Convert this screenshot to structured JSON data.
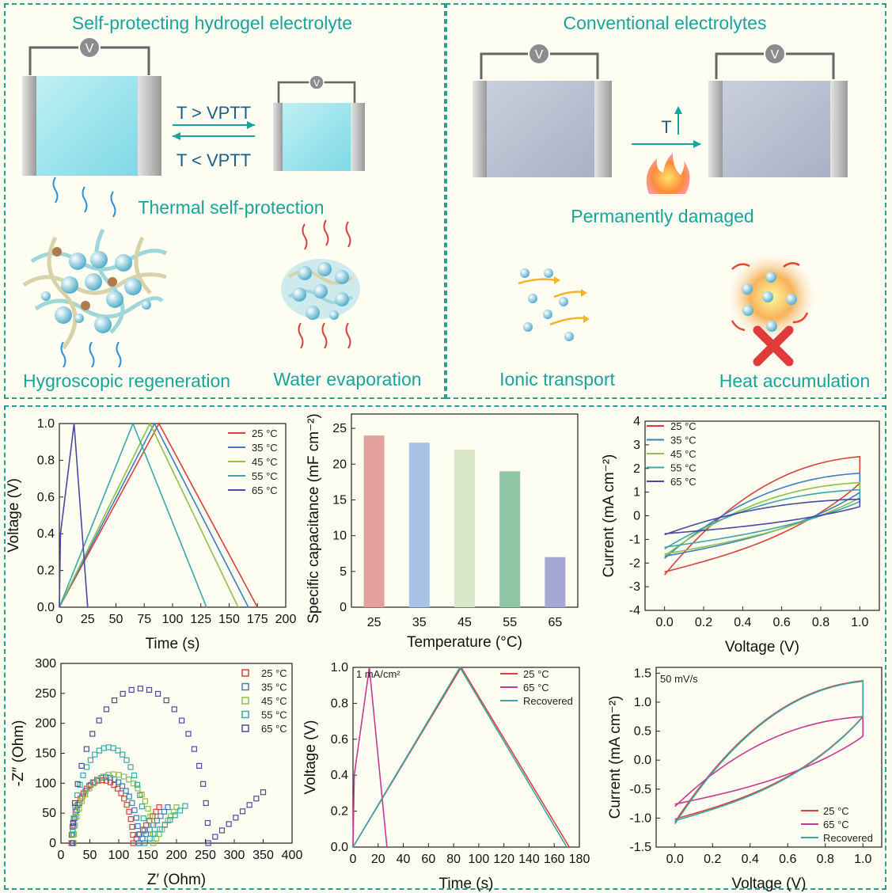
{
  "top": {
    "left_title": "Self-protecting hydrogel electrolyte",
    "right_title": "Conventional electrolytes",
    "voltmeter": "V",
    "arrow_up": "T > VPTT",
    "arrow_down": "T < VPTT",
    "thermal": "Thermal self-protection",
    "hygroscopic": "Hygroscopic regeneration",
    "water": "Water evaporation",
    "t_label": "T",
    "damaged": "Permanently damaged",
    "ionic": "Ionic transport",
    "heat": "Heat accumulation"
  },
  "colors": {
    "accent": "#19a39a",
    "c25": "#d9403a",
    "c35": "#3c7fc0",
    "c45": "#8cc04a",
    "c55": "#3aa7a8",
    "c65": "#4a4aa0",
    "magenta": "#c8398e"
  },
  "chart_data": [
    {
      "type": "line",
      "xlabel": "Time (s)",
      "ylabel": "Voltage (V)",
      "xlim": [
        0,
        200
      ],
      "ylim": [
        0,
        1.0
      ],
      "xticks": [
        "0",
        "25",
        "50",
        "75",
        "100",
        "125",
        "150",
        "175",
        "200"
      ],
      "yticks": [
        "0.0",
        "0.2",
        "0.4",
        "0.6",
        "0.8",
        "1.0"
      ],
      "series": [
        {
          "name": "25 °C",
          "x": [
            0,
            88,
            175
          ],
          "y": [
            0,
            1.0,
            0
          ]
        },
        {
          "name": "35 °C",
          "x": [
            0,
            84,
            167
          ],
          "y": [
            0,
            1.0,
            0
          ]
        },
        {
          "name": "45 °C",
          "x": [
            0,
            80,
            158
          ],
          "y": [
            0,
            1.0,
            0
          ]
        },
        {
          "name": "55 °C",
          "x": [
            0,
            65,
            130
          ],
          "y": [
            0,
            1.0,
            0
          ]
        },
        {
          "name": "65 °C",
          "x": [
            0,
            1,
            13,
            25
          ],
          "y": [
            0,
            0.4,
            1.0,
            0
          ]
        }
      ]
    },
    {
      "type": "bar",
      "xlabel": "Temperature (°C)",
      "ylabel": "Specific capacitance  (mF cm⁻²)",
      "categories": [
        "25",
        "35",
        "45",
        "55",
        "65"
      ],
      "values": [
        24,
        23,
        22,
        19,
        7
      ],
      "ylim": [
        0,
        27
      ],
      "yticks": [
        "0",
        "5",
        "10",
        "15",
        "20",
        "25"
      ],
      "bar_colors": [
        "#e3a19d",
        "#a6c2e6",
        "#d9e6c8",
        "#8fc5a4",
        "#a4a7d4"
      ]
    },
    {
      "type": "line",
      "xlabel": "Voltage (V)",
      "ylabel": "Current (mA cm⁻²)",
      "xlim": [
        -0.1,
        1.1
      ],
      "ylim": [
        -4,
        4
      ],
      "xticks": [
        "0.0",
        "0.2",
        "0.4",
        "0.6",
        "0.8",
        "1.0"
      ],
      "yticks": [
        "-4",
        "-3",
        "-2",
        "-1",
        "0",
        "1",
        "2",
        "3",
        "4"
      ],
      "series": [
        {
          "name": "25 °C",
          "top": 2.5,
          "bottom": -2.5,
          "start": -2.5
        },
        {
          "name": "35 °C",
          "top": 1.8,
          "bottom": -1.8,
          "start": -1.8
        },
        {
          "name": "45 °C",
          "top": 1.4,
          "bottom": -1.7,
          "start": -1.7
        },
        {
          "name": "55 °C",
          "top": 1.1,
          "bottom": -1.4,
          "start": -1.4
        },
        {
          "name": "65 °C",
          "top": 0.7,
          "bottom": -0.8,
          "start": -0.8
        }
      ]
    },
    {
      "type": "scatter",
      "xlabel": "Z′ (Ohm)",
      "ylabel": "-Z″ (Ohm)",
      "xlim": [
        0,
        400
      ],
      "ylim": [
        0,
        300
      ],
      "xticks": [
        "0",
        "50",
        "100",
        "150",
        "200",
        "250",
        "300",
        "350",
        "400"
      ],
      "yticks": [
        "0",
        "50",
        "100",
        "150",
        "200",
        "250",
        "300"
      ],
      "series": [
        {
          "name": "25 °C",
          "r0": 18,
          "r1": 125,
          "peak": 105,
          "tail_end": [
            170,
            60
          ]
        },
        {
          "name": "35 °C",
          "r0": 20,
          "r1": 135,
          "peak": 110,
          "tail_end": [
            185,
            60
          ]
        },
        {
          "name": "45 °C",
          "r0": 22,
          "r1": 160,
          "peak": 115,
          "tail_end": [
            200,
            60
          ]
        },
        {
          "name": "55 °C",
          "r0": 20,
          "r1": 145,
          "peak": 160,
          "tail_end": [
            215,
            62
          ]
        },
        {
          "name": "65 °C",
          "r0": 20,
          "r1": 255,
          "peak": 258,
          "tail_end": [
            350,
            85
          ]
        }
      ]
    },
    {
      "type": "line",
      "annotation": "1 mA/cm²",
      "xlabel": "Time (s)",
      "ylabel": "Voltage (V)",
      "xlim": [
        0,
        180
      ],
      "ylim": [
        0,
        1.0
      ],
      "xticks": [
        "0",
        "20",
        "40",
        "60",
        "80",
        "100",
        "120",
        "140",
        "160",
        "180"
      ],
      "yticks": [
        "0.0",
        "0.2",
        "0.4",
        "0.6",
        "0.8",
        "1.0"
      ],
      "series": [
        {
          "name": "25 °C",
          "x": [
            0,
            86,
            172
          ],
          "y": [
            0,
            1.0,
            0
          ]
        },
        {
          "name": "65 °C",
          "x": [
            0,
            1,
            13,
            27
          ],
          "y": [
            0,
            0.4,
            1.0,
            0
          ]
        },
        {
          "name": "Recovered",
          "x": [
            0,
            85,
            170
          ],
          "y": [
            0,
            1.0,
            0
          ]
        }
      ]
    },
    {
      "type": "line",
      "annotation": "50 mV/s",
      "xlabel": "Voltage (V)",
      "ylabel": "Current (mA cm⁻²)",
      "xlim": [
        -0.1,
        1.1
      ],
      "ylim": [
        -1.5,
        1.6
      ],
      "xticks": [
        "0.0",
        "0.2",
        "0.4",
        "0.6",
        "0.8",
        "1.0"
      ],
      "yticks": [
        "-1.5",
        "-1.0",
        "-0.5",
        "0.0",
        "0.5",
        "1.0",
        "1.5"
      ],
      "series": [
        {
          "name": "25 °C",
          "top": 1.37,
          "bottom": -1.07,
          "start": -1.07
        },
        {
          "name": "65 °C",
          "top": 0.75,
          "bottom": -0.8,
          "start": -0.8
        },
        {
          "name": "Recovered",
          "top": 1.36,
          "bottom": -1.1,
          "start": -1.1
        }
      ]
    }
  ]
}
